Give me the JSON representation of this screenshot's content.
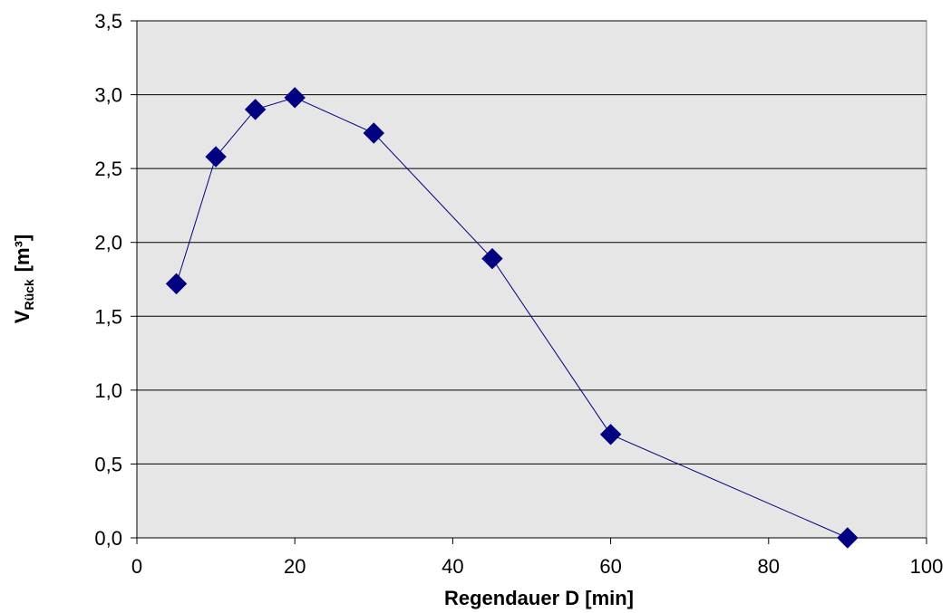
{
  "colors": {
    "plot_background": "#e6e6e6",
    "gridline": "#000000",
    "series": "#000080"
  },
  "chart_data": {
    "type": "line",
    "title": "",
    "xlabel": "Regendauer D [min]",
    "ylabel_main": "V",
    "ylabel_subscript": "Rück",
    "ylabel_unit": "[m³]",
    "xlim": [
      0,
      100
    ],
    "ylim": [
      0,
      3.5
    ],
    "x_ticks": [
      0,
      20,
      40,
      60,
      80,
      100
    ],
    "x_tick_labels": [
      "0",
      "20",
      "40",
      "60",
      "80",
      "100"
    ],
    "y_ticks": [
      0,
      0.5,
      1.0,
      1.5,
      2.0,
      2.5,
      3.0,
      3.5
    ],
    "y_tick_labels": [
      "0,0",
      "0,5",
      "1,0",
      "1,5",
      "2,0",
      "2,5",
      "3,0",
      "3,5"
    ],
    "grid": "horizontal",
    "legend": "none",
    "marker": "diamond",
    "series": [
      {
        "x": [
          5,
          10,
          15,
          20,
          30,
          45,
          60,
          90
        ],
        "values": [
          1.72,
          2.58,
          2.9,
          2.98,
          2.74,
          1.89,
          0.7,
          0.0
        ]
      }
    ]
  }
}
